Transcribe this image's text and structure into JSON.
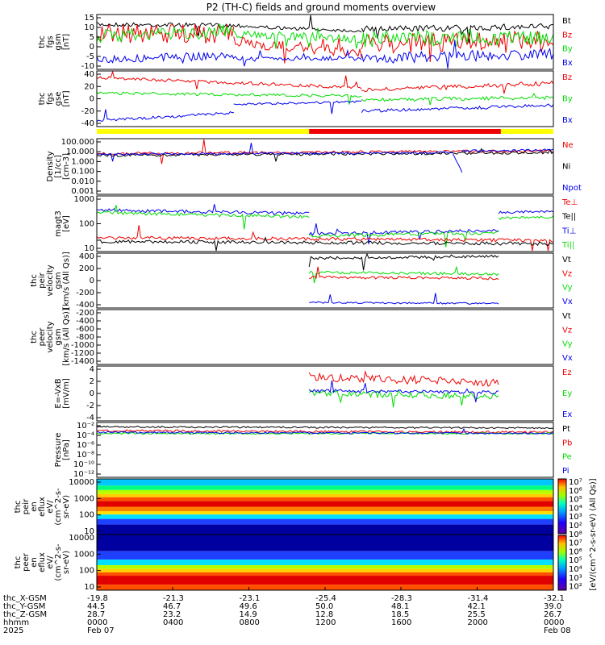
{
  "title": "P2 (TH-C) fields and ground moments overview",
  "colors": {
    "black": "#000000",
    "red": "#ee0000",
    "green": "#00dd00",
    "blue": "#0000ee",
    "yellow": "#ffff00"
  },
  "panels": [
    {
      "id": "fgs-gsm",
      "ylabel": [
        "thc",
        "fgs",
        "gsm",
        "[nT]"
      ],
      "ticks": [
        "15",
        "10",
        "5",
        "0",
        "-5",
        "-10"
      ],
      "legend": [
        {
          "t": "Bt",
          "c": "black"
        },
        {
          "t": "Bz",
          "c": "red"
        },
        {
          "t": "By",
          "c": "green"
        },
        {
          "t": "Bx",
          "c": "blue"
        }
      ]
    },
    {
      "id": "fgs-gse",
      "ylabel": [
        "thc",
        "fgs",
        "gse",
        "[nT]"
      ],
      "ticks": [
        "40",
        "20",
        "0",
        "-20",
        "-40"
      ],
      "legend": [
        {
          "t": "Bz",
          "c": "red"
        },
        {
          "t": "By",
          "c": "green"
        },
        {
          "t": "Bx",
          "c": "blue"
        }
      ]
    },
    {
      "id": "density",
      "ylabel": [
        "Density",
        "[1/cc]",
        "[cm-3]"
      ],
      "ticks": [
        "100.000",
        "10.000",
        "1.000",
        "0.100",
        "0.010",
        "0.001"
      ],
      "legend": [
        {
          "t": "Ne",
          "c": "red"
        },
        {
          "t": "Ni",
          "c": "black"
        },
        {
          "t": "Npot",
          "c": "blue"
        }
      ]
    },
    {
      "id": "temperature",
      "ylabel": [
        "magt3",
        "[eV]"
      ],
      "ticks": [
        "1000",
        "100",
        "10"
      ],
      "legend": [
        {
          "t": "Te⊥",
          "c": "red"
        },
        {
          "t": "Te||",
          "c": "black"
        },
        {
          "t": "Ti⊥",
          "c": "blue"
        },
        {
          "t": "Ti||",
          "c": "green"
        }
      ]
    },
    {
      "id": "peir-velocity",
      "ylabel": [
        "thc",
        "peir",
        "velocity",
        "gsm",
        "[km/s (All Qs)]"
      ],
      "ticks": [
        "400",
        "200",
        "0",
        "-200",
        "-400"
      ],
      "legend": [
        {
          "t": "Vt",
          "c": "black"
        },
        {
          "t": "Vz",
          "c": "red"
        },
        {
          "t": "Vy",
          "c": "green"
        },
        {
          "t": "Vx",
          "c": "blue"
        }
      ]
    },
    {
      "id": "peer-velocity",
      "ylabel": [
        "thc",
        "peer",
        "velocity",
        "gsm",
        "[km/s (All Qs)]"
      ],
      "ticks": [
        "-200",
        "-400",
        "-600",
        "-800",
        "-1000",
        "-1200",
        "-1400"
      ],
      "legend": [
        {
          "t": "Vt",
          "c": "black"
        },
        {
          "t": "Vz",
          "c": "red"
        },
        {
          "t": "Vy",
          "c": "green"
        },
        {
          "t": "Vx",
          "c": "blue"
        }
      ]
    },
    {
      "id": "efield",
      "ylabel": [
        "E=-VxB",
        "[mV/m]"
      ],
      "ticks": [
        "4",
        "2",
        "0",
        "-2",
        "-4"
      ],
      "legend": [
        {
          "t": "Ez",
          "c": "red"
        },
        {
          "t": "Ey",
          "c": "green"
        },
        {
          "t": "Ex",
          "c": "blue"
        }
      ]
    },
    {
      "id": "pressure",
      "ylabel": [
        "Pressure",
        "[nPa]"
      ],
      "ticks": [
        "10⁻²",
        "10⁻⁴",
        "10⁻⁶",
        "10⁻⁸",
        "10⁻¹⁰",
        "10⁻¹²"
      ],
      "legend": [
        {
          "t": "Pt",
          "c": "black"
        },
        {
          "t": "Pb",
          "c": "red"
        },
        {
          "t": "Pe",
          "c": "green"
        },
        {
          "t": "Pi",
          "c": "blue"
        }
      ]
    },
    {
      "id": "peir-eflux",
      "ylabel": [
        "thc",
        "peir",
        "en",
        "eflux",
        "eV/",
        "(cm^2-s-",
        "sr-eV)"
      ],
      "ticks": [
        "10000",
        "1000",
        "100",
        "10"
      ],
      "legend": []
    },
    {
      "id": "peer-eflux",
      "ylabel": [
        "thc",
        "peer",
        "en",
        "eflux",
        "eV/",
        "(cm^2-s-",
        "sr-eV)"
      ],
      "ticks": [
        "10000",
        "1000",
        "100",
        "10"
      ],
      "legend": []
    }
  ],
  "colorbar": {
    "label": "[eV/(cm^2-s-sr-eV) (All Qs)]",
    "ticks": [
      "10⁷",
      "10⁶",
      "10⁵",
      "10⁴",
      "10³",
      "10²",
      "10⁸",
      "10⁷",
      "10⁶",
      "10⁵",
      "10⁴",
      "10³",
      "10²"
    ]
  },
  "footer": {
    "rows": [
      {
        "label": "thc_X-GSM",
        "values": [
          "-19.8",
          "-21.3",
          "-23.1",
          "-25.4",
          "-28.3",
          "-31.4",
          "-32.1"
        ]
      },
      {
        "label": "thc_Y-GSM",
        "values": [
          "44.5",
          "46.7",
          "49.6",
          "50.0",
          "48.1",
          "42.1",
          "39.0"
        ]
      },
      {
        "label": "thc_Z-GSM",
        "values": [
          "28.7",
          "23.2",
          "14.9",
          "12.8",
          "18.5",
          "25.5",
          "26.7"
        ]
      },
      {
        "label": "hhmm",
        "values": [
          "0000",
          "0400",
          "0800",
          "1200",
          "1600",
          "2000",
          "0000"
        ]
      },
      {
        "label": "2025",
        "values": [
          "Feb 07",
          "",
          "",
          "",
          "",
          "",
          "Feb 08"
        ]
      }
    ]
  },
  "chart_data": {
    "type": "line",
    "title": "P2 (TH-C) fields and ground moments overview",
    "x": [
      "0000",
      "0400",
      "0800",
      "1200",
      "1600",
      "2000",
      "0000"
    ],
    "xlabel": "hhmm",
    "date_range": [
      "2025 Feb 07",
      "Feb 08"
    ],
    "panels": [
      {
        "name": "thc fgs gsm [nT]",
        "ylim": [
          -10,
          15
        ],
        "series": [
          {
            "name": "Bt",
            "color": "#000000",
            "values": [
              12,
              12,
              10,
              9,
              8,
              11,
              7
            ]
          },
          {
            "name": "Bz",
            "color": "#ee0000",
            "values": [
              5,
              4,
              3,
              3,
              2,
              3,
              6
            ]
          },
          {
            "name": "By",
            "color": "#00dd00",
            "values": [
              3,
              5,
              6,
              4,
              2,
              4,
              5
            ]
          },
          {
            "name": "Bx",
            "color": "#0000ee",
            "values": [
              -6,
              -5,
              -3,
              -2,
              -2,
              -4,
              -3
            ]
          }
        ]
      },
      {
        "name": "thc fgs gse [nT]",
        "ylim": [
          -50,
          40
        ],
        "series": [
          {
            "name": "Bz",
            "color": "#ee0000",
            "values": [
              30,
              25,
              20,
              15,
              8,
              14,
              20
            ]
          },
          {
            "name": "By",
            "color": "#00dd00",
            "values": [
              5,
              8,
              6,
              5,
              0,
              2,
              3
            ]
          },
          {
            "name": "Bx",
            "color": "#0000ee",
            "values": [
              -42,
              -36,
              -22,
              -10,
              -14,
              -16,
              -10
            ]
          }
        ]
      },
      {
        "name": "Density [1/cc]",
        "ylim": [
          0.001,
          100
        ],
        "scale": "log",
        "series": [
          {
            "name": "Ne",
            "color": "#ee0000",
            "values": [
              4,
              5,
              5,
              4,
              4,
              5,
              6
            ]
          },
          {
            "name": "Ni",
            "color": "#000000",
            "values": [
              3,
              4,
              4,
              3,
              3,
              4,
              5
            ]
          },
          {
            "name": "Npot",
            "color": "#0000ee",
            "values": [
              3,
              4,
              4,
              3,
              3,
              4,
              5
            ]
          }
        ]
      },
      {
        "name": "magt3 [eV]",
        "ylim": [
          10,
          1000
        ],
        "scale": "log",
        "series": [
          {
            "name": "Te⊥",
            "color": "#ee0000",
            "values": [
              30,
              25,
              20,
              20,
              15,
              15,
              25
            ]
          },
          {
            "name": "Te||",
            "color": "#000000",
            "values": [
              22,
              20,
              18,
              18,
              12,
              12,
              20
            ]
          },
          {
            "name": "Ti⊥",
            "color": "#0000ee",
            "values": [
              650,
              600,
              550,
              50,
              50,
              60,
              500
            ]
          },
          {
            "name": "Ti||",
            "color": "#00dd00",
            "values": [
              500,
              450,
              420,
              35,
              35,
              40,
              300
            ]
          }
        ]
      },
      {
        "name": "thc peir velocity gsm [km/s (All Qs)]",
        "ylim": [
          -400,
          400
        ],
        "series": [
          {
            "name": "Vt",
            "color": "#000000",
            "values": [
              null,
              null,
              null,
              330,
              360,
              320,
              null
            ]
          },
          {
            "name": "Vz",
            "color": "#ee0000",
            "values": [
              null,
              null,
              null,
              60,
              40,
              30,
              null
            ]
          },
          {
            "name": "Vy",
            "color": "#00dd00",
            "values": [
              null,
              null,
              null,
              120,
              100,
              50,
              null
            ]
          },
          {
            "name": "Vx",
            "color": "#0000ee",
            "values": [
              null,
              null,
              null,
              -310,
              -350,
              -300,
              null
            ]
          }
        ]
      },
      {
        "name": "E=-VxB [mV/m]",
        "ylim": [
          -4,
          4
        ],
        "series": [
          {
            "name": "Ez",
            "color": "#ee0000",
            "values": [
              null,
              null,
              null,
              2,
              1.5,
              1.5,
              null
            ]
          },
          {
            "name": "Ey",
            "color": "#00dd00",
            "values": [
              null,
              null,
              null,
              -0.5,
              -1,
              -0.8,
              null
            ]
          },
          {
            "name": "Ex",
            "color": "#0000ee",
            "values": [
              null,
              null,
              null,
              0.5,
              0.3,
              0.2,
              null
            ]
          }
        ]
      },
      {
        "name": "Pressure [nPa]",
        "ylim": [
          1e-12,
          0.1
        ],
        "scale": "log",
        "series": [
          {
            "name": "Pt",
            "color": "#000000",
            "values": [
              0.08,
              0.07,
              0.06,
              0.05,
              0.04,
              0.05,
              0.05
            ]
          },
          {
            "name": "Pb",
            "color": "#ee0000",
            "values": [
              0.06,
              0.05,
              0.05,
              0.03,
              0.02,
              0.03,
              0.04
            ]
          },
          {
            "name": "Pe",
            "color": "#00dd00",
            "values": [
              0.005,
              0.005,
              0.004,
              0.004,
              0.004,
              0.004,
              0.005
            ]
          },
          {
            "name": "Pi",
            "color": "#0000ee",
            "values": [
              0.02,
              0.02,
              0.02,
              0.01,
              0.01,
              0.01,
              0.02
            ]
          }
        ]
      }
    ]
  }
}
